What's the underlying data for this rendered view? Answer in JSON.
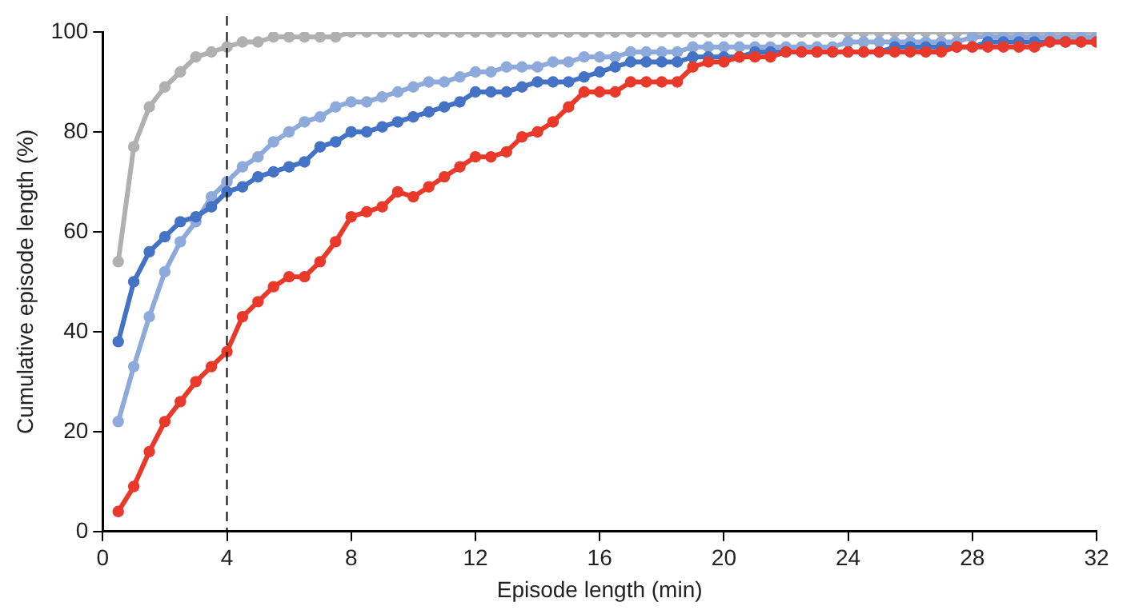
{
  "chart_data": {
    "type": "line",
    "xlabel": "Episode length (min)",
    "ylabel": "Cumulative episode length (%)",
    "x": [
      0.5,
      1,
      1.5,
      2,
      2.5,
      3,
      3.5,
      4,
      4.5,
      5,
      5.5,
      6,
      6.5,
      7,
      7.5,
      8,
      8.5,
      9,
      9.5,
      10,
      10.5,
      11,
      11.5,
      12,
      12.5,
      13,
      13.5,
      14,
      14.5,
      15,
      15.5,
      16,
      16.5,
      17,
      17.5,
      18,
      18.5,
      19,
      19.5,
      20,
      20.5,
      21,
      21.5,
      22,
      22.5,
      23,
      23.5,
      24,
      24.5,
      25,
      25.5,
      26,
      26.5,
      27,
      27.5,
      28,
      28.5,
      29,
      29.5,
      30,
      30.5,
      31,
      31.5,
      32
    ],
    "series": [
      {
        "color": "#e8392a",
        "values": [
          4,
          9,
          16,
          22,
          26,
          30,
          33,
          36,
          43,
          46,
          49,
          51,
          51,
          54,
          58,
          63,
          64,
          65,
          68,
          67,
          69,
          71,
          73,
          75,
          75,
          76,
          79,
          80,
          82,
          85,
          88,
          88,
          88,
          90,
          90,
          90,
          90,
          93,
          94,
          94,
          95,
          95,
          95,
          96,
          96,
          96,
          96,
          96,
          96,
          96,
          96,
          96,
          96,
          96,
          97,
          97,
          97,
          97,
          97,
          97,
          98,
          98,
          98,
          98
        ]
      },
      {
        "color": "#4472c4",
        "values": [
          38,
          50,
          56,
          59,
          62,
          63,
          65,
          68,
          69,
          71,
          72,
          73,
          74,
          77,
          78,
          80,
          80,
          81,
          82,
          83,
          84,
          85,
          86,
          88,
          88,
          88,
          89,
          90,
          90,
          90,
          91,
          92,
          93,
          94,
          94,
          94,
          94,
          95,
          95,
          95,
          95,
          96,
          96,
          96,
          96,
          96,
          96,
          96,
          96,
          96,
          97,
          97,
          97,
          97,
          97,
          97,
          98,
          98,
          98,
          98,
          98,
          98,
          98,
          98
        ]
      },
      {
        "color": "#8eaadb",
        "values": [
          22,
          33,
          43,
          52,
          58,
          62,
          67,
          70,
          73,
          75,
          78,
          80,
          82,
          83,
          85,
          86,
          86,
          87,
          88,
          89,
          90,
          90,
          91,
          92,
          92,
          93,
          93,
          93,
          94,
          94,
          95,
          95,
          95,
          96,
          96,
          96,
          96,
          97,
          97,
          97,
          97,
          97,
          97,
          97,
          97,
          97,
          97,
          98,
          98,
          98,
          98,
          98,
          98,
          98,
          98,
          99,
          99,
          99,
          99,
          99,
          99,
          99,
          99,
          99
        ]
      },
      {
        "color": "#b0b0b0",
        "values": [
          54,
          77,
          85,
          89,
          92,
          95,
          96,
          97,
          98,
          98,
          99,
          99,
          99,
          99,
          99,
          100,
          100,
          100,
          100,
          100,
          100,
          100,
          100,
          100,
          100,
          100,
          100,
          100,
          100,
          100,
          100,
          100,
          100,
          100,
          100,
          100,
          100,
          100,
          100,
          100,
          100,
          100,
          100,
          100,
          100,
          100,
          100,
          100,
          100,
          100,
          100,
          100,
          100,
          100,
          100,
          100,
          100,
          100,
          100,
          100,
          100,
          100,
          100,
          100
        ]
      }
    ],
    "xlim": [
      0,
      32
    ],
    "xticks": [
      0,
      4,
      8,
      12,
      16,
      20,
      24,
      28,
      32
    ],
    "ylim": [
      0,
      100
    ],
    "yticks": [
      0,
      20,
      40,
      60,
      80,
      100
    ],
    "ref_lines": [
      {
        "axis": "x",
        "value": 4,
        "color": "#000000",
        "line_style": "dashed"
      }
    ],
    "grid": false,
    "legend": false,
    "marker": "circle",
    "line_style": "solid"
  }
}
